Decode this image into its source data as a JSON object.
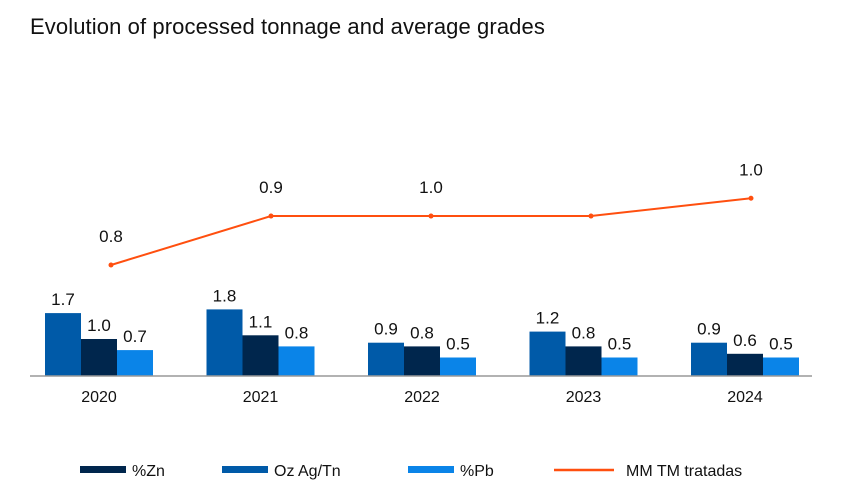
{
  "chart_data": {
    "type": "bar",
    "title": "Evolution of processed tonnage and average grades",
    "categories": [
      "2020",
      "2021",
      "2022",
      "2023",
      "2024"
    ],
    "series": [
      {
        "name": "Oz Ag/Tn",
        "kind": "bar",
        "color": "#005aa8",
        "values": [
          1.7,
          1.8,
          0.9,
          1.2,
          0.9
        ],
        "labels": [
          "1.7",
          "1.8",
          "0.9",
          "1.2",
          "0.9"
        ]
      },
      {
        "name": "%Zn",
        "kind": "bar",
        "color": "#00264d",
        "values": [
          1.0,
          1.1,
          0.8,
          0.8,
          0.6
        ],
        "labels": [
          "1.0",
          "1.1",
          "0.8",
          "0.8",
          "0.6"
        ]
      },
      {
        "name": "%Pb",
        "kind": "bar",
        "color": "#0a84e8",
        "values": [
          0.7,
          0.8,
          0.5,
          0.5,
          0.5
        ],
        "labels": [
          "0.7",
          "0.8",
          "0.5",
          "0.5",
          "0.5"
        ]
      },
      {
        "name": "MM TM tratadas",
        "kind": "line",
        "color": "#ff4f0f",
        "values": [
          0.84,
          0.95,
          0.95,
          0.95,
          0.99
        ],
        "labels": [
          "0.8",
          "0.9",
          "1.0",
          "",
          "1.0"
        ]
      }
    ],
    "legend": {
      "placement": "bottom",
      "order": [
        "%Zn",
        "Oz Ag/Tn",
        "%Pb",
        "MM TM tratadas"
      ]
    },
    "xlabel": "",
    "ylabel": "",
    "grid": false
  }
}
